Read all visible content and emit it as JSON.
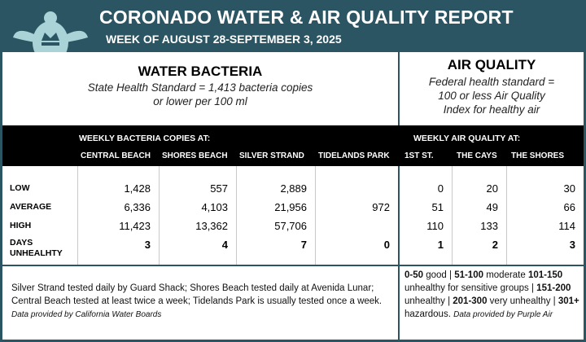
{
  "header": {
    "title": "CORONADO WATER & AIR QUALITY REPORT",
    "subtitle": "WEEK OF AUGUST 28-SEPTEMBER 3, 2025"
  },
  "water": {
    "title": "WATER BACTERIA",
    "standard": [
      "State Health Standard  = 1,413 bacteria copies",
      "or lower per 100 ml"
    ],
    "group_label": "WEEKLY BACTERIA COPIES AT:",
    "columns": [
      "CENTRAL BEACH",
      "SHORES BEACH",
      "SILVER STRAND",
      "TIDELANDS PARK"
    ],
    "note": [
      {
        "text": "Silver Strand tested daily by Guard Shack; Shores Beach tested daily at Avenida Lunar; Central Beach tested at least twice a week; Tidelands Park is usually tested once a week. ",
        "style": "normal"
      },
      {
        "text": "Data provided by California Water Boards",
        "style": "italic"
      }
    ]
  },
  "air": {
    "title": "AIR QUALITY",
    "standard": [
      "Federal health standard =",
      "100 or less Air Quality",
      "Index for healthy air"
    ],
    "group_label": "WEEKLY AIR QUALITY AT:",
    "columns": [
      "1ST ST.",
      "THE CAYS",
      "THE SHORES"
    ],
    "note": [
      {
        "text": "0-50",
        "style": "bold"
      },
      {
        "text": " good | ",
        "style": "normal"
      },
      {
        "text": "51-100",
        "style": "bold"
      },
      {
        "text": " moderate ",
        "style": "normal"
      },
      {
        "text": "101-150",
        "style": "bold"
      },
      {
        "text": " unhealthy for sensitive groups | ",
        "style": "normal"
      },
      {
        "text": "151-200",
        "style": "bold"
      },
      {
        "text": " unhealthy | ",
        "style": "normal"
      },
      {
        "text": "201-300",
        "style": "bold"
      },
      {
        "text": " very unhealthy | ",
        "style": "normal"
      },
      {
        "text": "301+",
        "style": "bold"
      },
      {
        "text": " hazardous. ",
        "style": "normal"
      },
      {
        "text": "Data provided by Purple Air",
        "style": "italic"
      }
    ]
  },
  "rows": [
    {
      "label": "LOW",
      "water": [
        "1,428",
        "557",
        "2,889",
        null
      ],
      "air": [
        "0",
        "20",
        "30"
      ],
      "bold": false
    },
    {
      "label": "AVERAGE",
      "water": [
        "6,336",
        "4,103",
        "21,956",
        "972"
      ],
      "air": [
        "51",
        "49",
        "66"
      ],
      "bold": false
    },
    {
      "label": "HIGH",
      "water": [
        "11,423",
        "13,362",
        "57,706",
        null
      ],
      "air": [
        "110",
        "133",
        "114"
      ],
      "bold": false
    },
    {
      "label": "DAYS UNHEALHTY",
      "water": [
        "3",
        "4",
        "7",
        "0"
      ],
      "air": [
        "1",
        "2",
        "3"
      ],
      "bold": true
    }
  ]
}
